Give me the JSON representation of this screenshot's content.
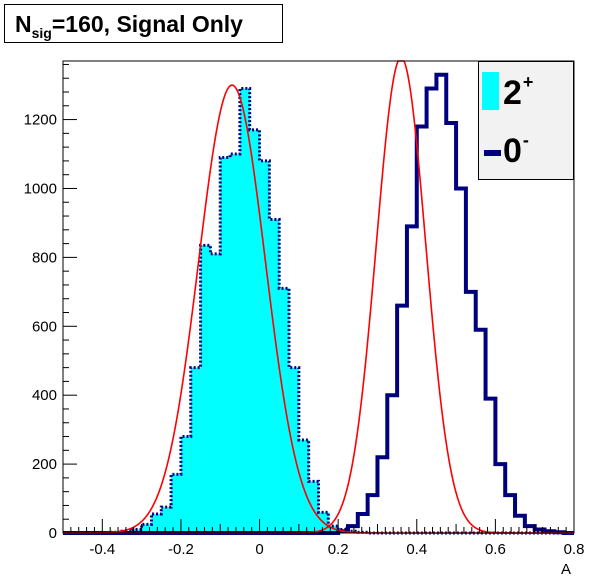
{
  "title": {
    "main": "N",
    "sub": "sig",
    "rest": "=160, Signal Only"
  },
  "legend": [
    {
      "label": "2",
      "sup": "+",
      "color": "#00ffff"
    },
    {
      "label": "0",
      "sup": "-",
      "color": "#00007f"
    }
  ],
  "chart_data": {
    "type": "histogram",
    "xlabel": "A",
    "ylabel": "",
    "xlim": [
      -0.5,
      0.8
    ],
    "ylim": [
      0,
      1370
    ],
    "xticks": [
      "-0.4",
      "-0.2",
      "0",
      "0.2",
      "0.4",
      "0.6",
      "0.8"
    ],
    "yticks": [
      "0",
      "200",
      "400",
      "600",
      "800",
      "1000",
      "1200"
    ],
    "grid": false,
    "legend_position": "top-right",
    "bin_width": 0.025,
    "series": [
      {
        "name": "2+",
        "style": "filled histogram, dotted outline",
        "fill": "#00ffff",
        "line_color": "#00007f",
        "bin_edges_start": -0.5,
        "values": [
          0,
          0,
          0,
          0,
          0,
          2,
          5,
          10,
          25,
          55,
          75,
          170,
          280,
          480,
          835,
          810,
          1090,
          1100,
          1290,
          1170,
          1080,
          910,
          710,
          480,
          270,
          150,
          60,
          20,
          10,
          5,
          2,
          0,
          0,
          0,
          0,
          0,
          0,
          0,
          0,
          0,
          0,
          0,
          0,
          0,
          0,
          0,
          0,
          0,
          0,
          0,
          0,
          0
        ]
      },
      {
        "name": "0-",
        "style": "outline histogram",
        "fill": "none",
        "line_color": "#00007f",
        "bin_edges_start": -0.5,
        "values": [
          0,
          0,
          0,
          0,
          0,
          0,
          0,
          0,
          0,
          0,
          0,
          0,
          0,
          0,
          0,
          0,
          0,
          0,
          0,
          0,
          0,
          0,
          0,
          0,
          0,
          0,
          0,
          0,
          5,
          20,
          55,
          110,
          220,
          400,
          660,
          890,
          1180,
          1290,
          1330,
          1190,
          1000,
          700,
          590,
          390,
          200,
          110,
          50,
          20,
          10,
          5,
          2,
          0
        ]
      },
      {
        "name": "fit 2+",
        "style": "gaussian curve",
        "line_color": "#ff0000",
        "amplitude": 1300,
        "mean": -0.07,
        "sigma": 0.085
      },
      {
        "name": "fit 0-",
        "style": "gaussian curve",
        "line_color": "#ff0000",
        "amplitude": 1380,
        "mean": 0.36,
        "sigma": 0.063
      }
    ]
  }
}
